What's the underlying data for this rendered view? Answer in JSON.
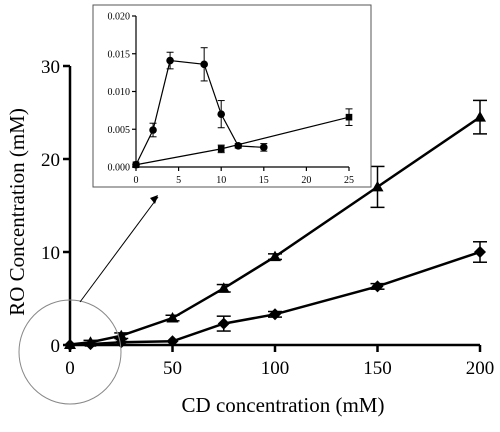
{
  "chart_data": [
    {
      "id": "main",
      "type": "line",
      "xlabel": "CD concentration (mM)",
      "ylabel": "RO Concentration (mM)",
      "xlim": [
        0,
        200
      ],
      "ylim": [
        0,
        30
      ],
      "xticks": [
        0,
        50,
        100,
        150,
        200
      ],
      "yticks": [
        0,
        10,
        20,
        30
      ],
      "grid": false,
      "series": [
        {
          "marker": "triangle",
          "color": "#000000",
          "points": [
            {
              "x": 0,
              "y": 0.05
            },
            {
              "x": 10,
              "y": 0.3,
              "err": 0.2
            },
            {
              "x": 25,
              "y": 1.0,
              "err": 0.3
            },
            {
              "x": 50,
              "y": 2.9,
              "err": 0.3
            },
            {
              "x": 75,
              "y": 6.1,
              "err": 0.4
            },
            {
              "x": 100,
              "y": 9.5,
              "err": 0.3
            },
            {
              "x": 150,
              "y": 17.0,
              "err": 2.2
            },
            {
              "x": 200,
              "y": 24.5,
              "err": 1.8
            }
          ]
        },
        {
          "marker": "diamond",
          "color": "#000000",
          "points": [
            {
              "x": 0,
              "y": 0.0
            },
            {
              "x": 10,
              "y": 0.1
            },
            {
              "x": 25,
              "y": 0.3
            },
            {
              "x": 50,
              "y": 0.4
            },
            {
              "x": 75,
              "y": 2.3,
              "err": 0.8
            },
            {
              "x": 100,
              "y": 3.3,
              "err": 0.3
            },
            {
              "x": 150,
              "y": 6.3,
              "err": 0.3
            },
            {
              "x": 200,
              "y": 10.0,
              "err": 1.1
            }
          ]
        }
      ]
    },
    {
      "id": "inset",
      "type": "line",
      "xlim": [
        0,
        25
      ],
      "ylim": [
        0,
        0.02
      ],
      "xticks": [
        0,
        5,
        10,
        15,
        20,
        25
      ],
      "yticks": [
        0.0,
        0.005,
        0.01,
        0.015,
        0.02
      ],
      "ytick_labels": [
        "0.000",
        "0.005",
        "0.010",
        "0.015",
        "0.020"
      ],
      "grid": false,
      "series": [
        {
          "marker": "circle",
          "color": "#000000",
          "points": [
            {
              "x": 0,
              "y": 0.0003
            },
            {
              "x": 2,
              "y": 0.0049,
              "err": 0.0009
            },
            {
              "x": 4,
              "y": 0.0141,
              "err": 0.0011
            },
            {
              "x": 8,
              "y": 0.0136,
              "err": 0.0022
            },
            {
              "x": 10,
              "y": 0.007,
              "err": 0.0018
            },
            {
              "x": 12,
              "y": 0.0028,
              "err": 0.0003
            },
            {
              "x": 15,
              "y": 0.0026,
              "err": 0.0005
            }
          ]
        },
        {
          "marker": "square",
          "color": "#000000",
          "points": [
            {
              "x": 0,
              "y": 0.0003
            },
            {
              "x": 10,
              "y": 0.0024,
              "err": 0.0005
            },
            {
              "x": 25,
              "y": 0.0066,
              "err": 0.0011
            }
          ]
        }
      ]
    }
  ]
}
